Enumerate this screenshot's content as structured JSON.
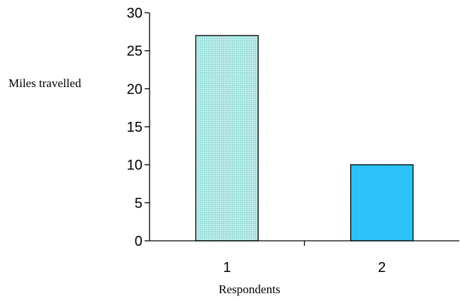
{
  "chart_data": {
    "type": "bar",
    "categories": [
      "1",
      "2"
    ],
    "values": [
      27,
      10
    ],
    "xlabel": "Respondents",
    "ylabel": "Miles travelled",
    "ylim": [
      0,
      30
    ],
    "yticks": [
      "0",
      "5",
      "10",
      "15",
      "20",
      "25",
      "30"
    ],
    "grid": false,
    "legend": "none",
    "colors": {
      "bar_1_fill": "#c8f0ee",
      "bar_1_hatch": "#5cc7c2",
      "bar_2_fill": "#33ccff",
      "bar_2_hatch": "#1aa6e0",
      "outline": "#000000"
    }
  }
}
